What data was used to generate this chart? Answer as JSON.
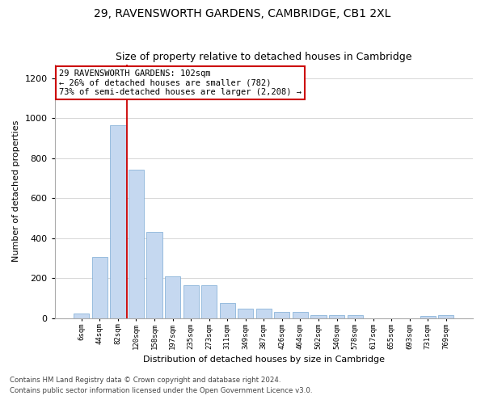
{
  "title_line1": "29, RAVENSWORTH GARDENS, CAMBRIDGE, CB1 2XL",
  "title_line2": "Size of property relative to detached houses in Cambridge",
  "xlabel": "Distribution of detached houses by size in Cambridge",
  "ylabel": "Number of detached properties",
  "bar_labels": [
    "6sqm",
    "44sqm",
    "82sqm",
    "120sqm",
    "158sqm",
    "197sqm",
    "235sqm",
    "273sqm",
    "311sqm",
    "349sqm",
    "387sqm",
    "426sqm",
    "464sqm",
    "502sqm",
    "540sqm",
    "578sqm",
    "617sqm",
    "655sqm",
    "693sqm",
    "731sqm",
    "769sqm"
  ],
  "bar_heights": [
    25,
    305,
    965,
    743,
    430,
    210,
    165,
    165,
    75,
    48,
    48,
    30,
    30,
    17,
    17,
    17,
    0,
    0,
    0,
    13,
    15
  ],
  "bar_color": "#c5d8f0",
  "bar_edge_color": "#7aaad4",
  "vline_color": "#cc0000",
  "vline_x_index": 2,
  "annotation_text": "29 RAVENSWORTH GARDENS: 102sqm\n← 26% of detached houses are smaller (782)\n73% of semi-detached houses are larger (2,208) →",
  "annotation_box_edgecolor": "#cc0000",
  "ylim": [
    0,
    1270
  ],
  "yticks": [
    0,
    200,
    400,
    600,
    800,
    1000,
    1200
  ],
  "footnote1": "Contains HM Land Registry data © Crown copyright and database right 2024.",
  "footnote2": "Contains public sector information licensed under the Open Government Licence v3.0.",
  "background_color": "#ffffff",
  "grid_color": "#d0d0d0"
}
